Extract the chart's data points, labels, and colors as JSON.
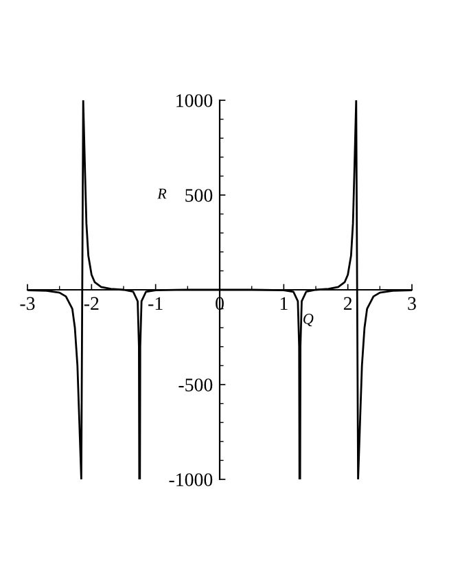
{
  "chart_data": {
    "type": "line",
    "xlabel": "Q",
    "ylabel": "R",
    "xlim": [
      -3,
      3
    ],
    "ylim": [
      -1000,
      1000
    ],
    "xticks": [
      -3,
      -2,
      -1,
      0,
      1,
      2,
      3
    ],
    "yticks": [
      -1000,
      -500,
      500,
      1000
    ],
    "grid": false,
    "marker": "none",
    "line_style": "solid",
    "series": [
      {
        "color": "#000000",
        "x": [
          -3,
          -2.7,
          -2.5,
          -2.4,
          -2.3,
          -2.26,
          -2.22,
          -2.19,
          -2.16,
          -2.13,
          -2.1,
          -2.08,
          -2.05,
          -2.0,
          -1.95,
          -1.85,
          -1.7,
          -1.5,
          -1.35,
          -1.28,
          -1.26,
          -1.255,
          -1.245,
          -1.24,
          -1.22,
          -1.15,
          -1.0,
          -0.5,
          0,
          0.5,
          1.0,
          1.15,
          1.22,
          1.24,
          1.245,
          1.255,
          1.26,
          1.28,
          1.35,
          1.5,
          1.7,
          1.85,
          1.95,
          2.0,
          2.05,
          2.08,
          2.1,
          2.13,
          2.16,
          2.19,
          2.22,
          2.26,
          2.3,
          2.4,
          2.5,
          2.7,
          3
        ],
        "values": [
          -2,
          -5,
          -15,
          -35,
          -100,
          -200,
          -400,
          -700,
          -1000,
          1000,
          600,
          350,
          180,
          80,
          40,
          15,
          5,
          0,
          -10,
          -60,
          -300,
          -1000,
          -1000,
          -300,
          -60,
          -10,
          -2,
          0,
          0,
          0,
          -2,
          -10,
          -60,
          -300,
          -1000,
          -1000,
          -300,
          -60,
          -10,
          0,
          5,
          15,
          40,
          80,
          180,
          350,
          600,
          1000,
          -1000,
          -700,
          -400,
          -200,
          -100,
          -35,
          -15,
          -5,
          -2
        ]
      }
    ]
  }
}
